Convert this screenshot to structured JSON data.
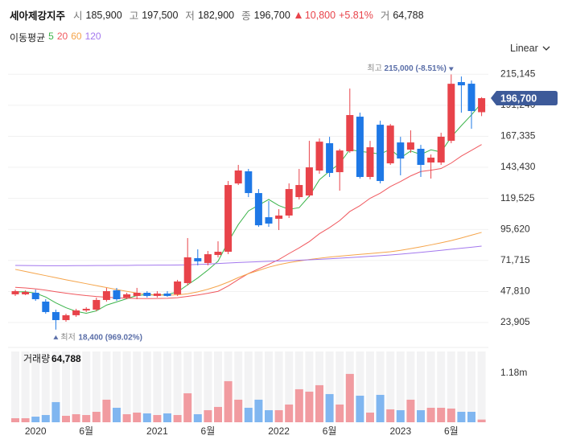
{
  "header": {
    "name": "세아제강지주",
    "items": [
      {
        "label": "시",
        "value": "185,900"
      },
      {
        "label": "고",
        "value": "197,500"
      },
      {
        "label": "저",
        "value": "182,900"
      },
      {
        "label": "종",
        "value": "196,700"
      }
    ],
    "change": "10,800",
    "change_pct": "+5.81%",
    "volume_label": "거",
    "volume": "64,788"
  },
  "scale_control": "Linear",
  "chart_data": [
    {
      "type": "candlestick",
      "legend_title": "이동평균",
      "categories": [
        null,
        null,
        "2020",
        null,
        null,
        null,
        null,
        "6월",
        null,
        null,
        null,
        null,
        null,
        null,
        "2021",
        null,
        null,
        null,
        null,
        "6월",
        null,
        null,
        null,
        null,
        null,
        null,
        "2022",
        null,
        null,
        null,
        null,
        "6월",
        null,
        null,
        null,
        null,
        null,
        null,
        "2023",
        null,
        null,
        null,
        null,
        "6월",
        null,
        null,
        null
      ],
      "open": [
        45600,
        45600,
        46800,
        40000,
        31950,
        25750,
        29500,
        33200,
        33800,
        41250,
        48700,
        43100,
        44350,
        46800,
        44350,
        46200,
        45600,
        54250,
        73450,
        69750,
        75900,
        78400,
        131000,
        140350,
        123600,
        105000,
        103800,
        106300,
        120500,
        121750,
        140950,
        162000,
        139700,
        155800,
        182450,
        136000,
        176250,
        146500,
        162600,
        157050,
        157700,
        147150,
        147150,
        163850,
        209100,
        207850,
        185900
      ],
      "high": [
        49300,
        48600,
        49300,
        41850,
        33800,
        30700,
        34450,
        35700,
        43100,
        50550,
        50550,
        46800,
        50550,
        48050,
        48050,
        48050,
        56750,
        88950,
        80250,
        79000,
        86450,
        132900,
        145300,
        142200,
        126700,
        117400,
        111200,
        131050,
        142200,
        163850,
        165700,
        166950,
        157650,
        204100,
        185550,
        163850,
        179350,
        176850,
        166950,
        171900,
        160750,
        153350,
        170050,
        215000,
        213400,
        210300,
        197500
      ],
      "low": [
        44350,
        45000,
        40600,
        30700,
        18400,
        24500,
        28250,
        31950,
        32600,
        40000,
        40600,
        41850,
        41850,
        43100,
        43100,
        43700,
        44350,
        52400,
        67900,
        67900,
        74050,
        76550,
        129800,
        120500,
        97600,
        97600,
        95100,
        104400,
        118650,
        120500,
        138500,
        136000,
        125450,
        154600,
        134750,
        134150,
        131050,
        145300,
        137250,
        154600,
        136000,
        134750,
        145300,
        162000,
        185550,
        173150,
        182900
      ],
      "close": [
        48050,
        47400,
        41850,
        31950,
        25750,
        29500,
        33200,
        34450,
        41250,
        48050,
        41850,
        45600,
        46800,
        44350,
        46200,
        44350,
        55500,
        74100,
        71000,
        76500,
        78400,
        129800,
        141000,
        123600,
        98800,
        100100,
        106300,
        126700,
        129800,
        143400,
        163200,
        139100,
        156400,
        183700,
        136000,
        158900,
        132900,
        175600,
        150200,
        162600,
        145300,
        150900,
        167000,
        207800,
        206600,
        186800,
        196700
      ],
      "up_color": "#e8434a",
      "down_color": "#1e78e6",
      "series": [
        {
          "name": "5",
          "color": "#3cb44b",
          "values": [
            47500,
            47600,
            46500,
            43500,
            39000,
            35300,
            32450,
            30970,
            32830,
            37290,
            39760,
            42240,
            44710,
            45330,
            44960,
            45460,
            47440,
            52900,
            58230,
            64290,
            71100,
            85960,
            99340,
            109860,
            114320,
            118660,
            113960,
            111100,
            112340,
            121260,
            133880,
            140440,
            146380,
            157160,
            155680,
            154820,
            153580,
            157420,
            150720,
            156040,
            153320,
            156920,
            155200,
            166720,
            175520,
            183820,
            192980
          ]
        },
        {
          "name": "20",
          "color": "#f0585e",
          "values": [
            51000,
            50500,
            49800,
            48800,
            47600,
            46500,
            45500,
            44600,
            43900,
            43400,
            42900,
            42600,
            42400,
            42300,
            42400,
            42500,
            43000,
            44000,
            45100,
            46400,
            47900,
            52000,
            57000,
            61600,
            65200,
            68700,
            72400,
            77000,
            81400,
            86200,
            92300,
            97000,
            102400,
            109400,
            113900,
            119600,
            123500,
            128600,
            132500,
            136800,
            140200,
            141200,
            142500,
            146700,
            152100,
            156500,
            161000
          ]
        },
        {
          "name": "60",
          "color": "#f5a44a",
          "values": [
            64800,
            63200,
            61600,
            60000,
            58400,
            56800,
            55300,
            53800,
            52300,
            50800,
            49300,
            47900,
            46600,
            45600,
            45100,
            45000,
            45200,
            46000,
            47500,
            49500,
            52000,
            55000,
            58500,
            61500,
            64000,
            66500,
            68500,
            70000,
            71300,
            72400,
            73400,
            74300,
            75000,
            75700,
            76400,
            77000,
            77700,
            78400,
            79500,
            80800,
            82200,
            83700,
            85300,
            87000,
            89000,
            91200,
            93300
          ]
        },
        {
          "name": "120",
          "color": "#a378ee",
          "values": [
            67900,
            67800,
            67700,
            67600,
            67600,
            67600,
            67700,
            67700,
            67800,
            67800,
            67900,
            67900,
            68000,
            68000,
            68100,
            68100,
            68200,
            68300,
            68600,
            68900,
            69300,
            69700,
            70100,
            70400,
            70700,
            71000,
            71300,
            71600,
            71900,
            72200,
            72600,
            73000,
            73400,
            73900,
            74400,
            74900,
            75400,
            75900,
            76500,
            77200,
            77900,
            78700,
            79500,
            80300,
            81100,
            81900,
            82700
          ]
        }
      ],
      "ylim": [
        9000,
        224000
      ],
      "yticks": [
        {
          "value": 23905,
          "label": "23,905"
        },
        {
          "value": 47810,
          "label": "47,810"
        },
        {
          "value": 71715,
          "label": "71,715"
        },
        {
          "value": 95620,
          "label": "95,620"
        },
        {
          "value": 119525,
          "label": "119,525"
        },
        {
          "value": 143430,
          "label": "143,430"
        },
        {
          "value": 167335,
          "label": "167,335"
        },
        {
          "value": 191240,
          "label": "191,240"
        },
        {
          "value": 215145,
          "label": "215,145"
        }
      ],
      "grid": true,
      "last_price_label": "196,700",
      "annotations": {
        "high_label": "최고",
        "high_text": "215,000 (-8.51%)",
        "low_label": "최저",
        "low_text": "18,400 (969.02%)"
      }
    },
    {
      "type": "bar",
      "title": "거래량",
      "title_value": "64,788",
      "values": [
        97000,
        97000,
        135000,
        174000,
        484000,
        155000,
        193000,
        174000,
        251000,
        542000,
        348000,
        193000,
        232000,
        213000,
        174000,
        213000,
        174000,
        696000,
        193000,
        290000,
        368000,
        987000,
        542000,
        348000,
        542000,
        290000,
        290000,
        426000,
        793000,
        735000,
        890000,
        677000,
        426000,
        1161000,
        638000,
        232000,
        658000,
        310000,
        290000,
        542000,
        290000,
        348000,
        348000,
        329000,
        251000,
        251000,
        64788
      ],
      "up_color": "#f19ba0",
      "down_color": "#80b6f0",
      "ylim": [
        0,
        1700000
      ],
      "yticks": [
        {
          "value": 1180000,
          "label": "1.18m"
        }
      ]
    }
  ]
}
